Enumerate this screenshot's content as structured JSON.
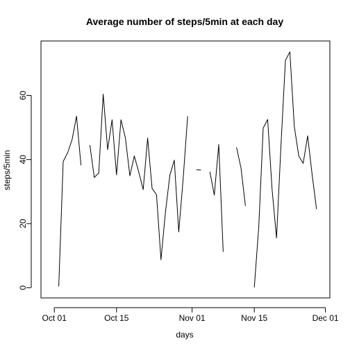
{
  "chart_data": {
    "type": "line",
    "title": "Average number of steps/5min at each day",
    "xlabel": "days",
    "ylabel": "steps/5min",
    "x_ticks": [
      "Oct 01",
      "Oct 15",
      "Nov 01",
      "Nov 15",
      "Dec 01"
    ],
    "y_ticks": [
      0,
      20,
      40,
      60
    ],
    "xlim": [
      "2012-09-28",
      "2012-12-02"
    ],
    "ylim": [
      -3.2,
      77
    ],
    "grid": false,
    "series": [
      {
        "color": "#000000",
        "x": [
          "2012-10-01",
          "2012-10-02",
          "2012-10-03",
          "2012-10-04",
          "2012-10-05",
          "2012-10-06",
          "2012-10-07",
          "2012-10-08",
          "2012-10-09",
          "2012-10-10",
          "2012-10-11",
          "2012-10-12",
          "2012-10-13",
          "2012-10-14",
          "2012-10-15",
          "2012-10-16",
          "2012-10-17",
          "2012-10-18",
          "2012-10-19",
          "2012-10-20",
          "2012-10-21",
          "2012-10-22",
          "2012-10-23",
          "2012-10-24",
          "2012-10-25",
          "2012-10-26",
          "2012-10-27",
          "2012-10-28",
          "2012-10-29",
          "2012-10-30",
          "2012-10-31",
          "2012-11-01",
          "2012-11-02",
          "2012-11-03",
          "2012-11-04",
          "2012-11-05",
          "2012-11-06",
          "2012-11-07",
          "2012-11-08",
          "2012-11-09",
          "2012-11-10",
          "2012-11-11",
          "2012-11-12",
          "2012-11-13",
          "2012-11-14",
          "2012-11-15",
          "2012-11-16",
          "2012-11-17",
          "2012-11-18",
          "2012-11-19",
          "2012-11-20",
          "2012-11-21",
          "2012-11-22",
          "2012-11-23",
          "2012-11-24",
          "2012-11-25",
          "2012-11-26",
          "2012-11-27",
          "2012-11-28",
          "2012-11-29",
          "2012-11-30"
        ],
        "values": [
          null,
          0.4,
          39.4,
          42.1,
          46.2,
          53.5,
          38.2,
          null,
          44.5,
          34.4,
          35.8,
          60.4,
          43.1,
          52.4,
          35.2,
          52.4,
          46.7,
          34.9,
          41.1,
          36.1,
          30.6,
          46.7,
          31.0,
          29.0,
          8.7,
          23.5,
          35.1,
          39.8,
          17.4,
          34.1,
          53.5,
          null,
          36.8,
          36.7,
          null,
          36.2,
          28.9,
          44.7,
          11.2,
          null,
          null,
          43.8,
          37.4,
          25.5,
          null,
          0.1,
          18.9,
          49.8,
          52.5,
          30.7,
          15.5,
          44.4,
          70.9,
          73.6,
          50.3,
          41.1,
          38.8,
          47.4,
          35.4,
          24.5,
          null
        ]
      }
    ]
  }
}
